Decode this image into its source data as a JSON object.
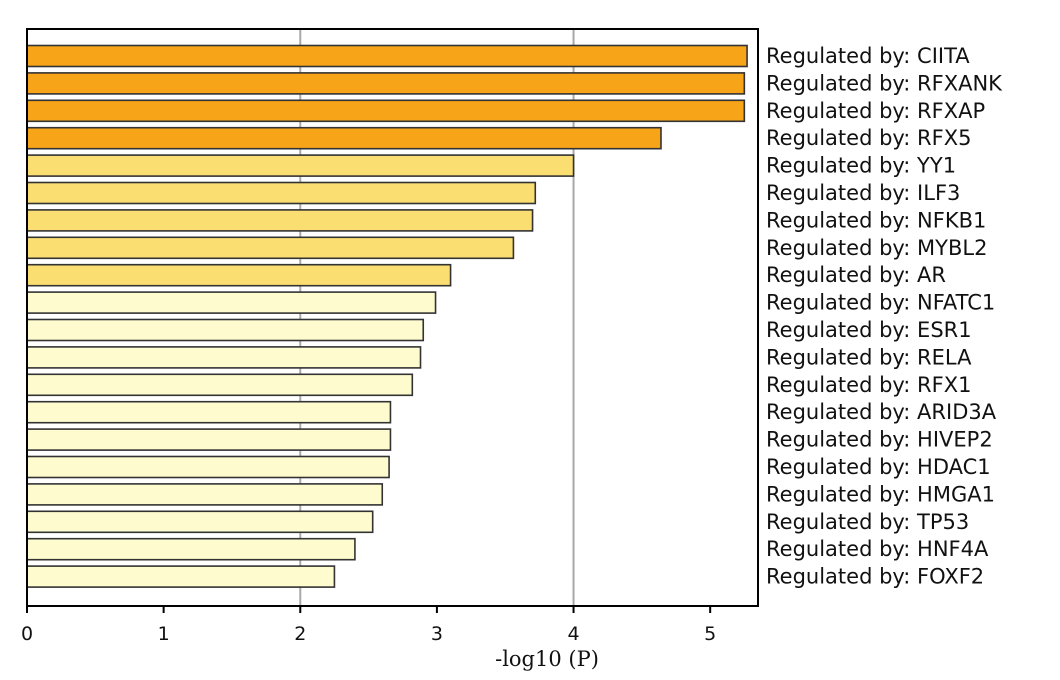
{
  "chart_data": {
    "type": "bar",
    "orientation": "horizontal",
    "title": "",
    "xlabel": "-log10 (P)",
    "ylabel": "",
    "xlim": [
      0,
      5.35
    ],
    "xticks": [
      0,
      1,
      2,
      3,
      4,
      5
    ],
    "grid": {
      "x": true,
      "gridlines_at": [
        2,
        4
      ]
    },
    "legend": "none",
    "category_labels_position": "right",
    "categories": [
      "Regulated by: CIITA",
      "Regulated by: RFXANK",
      "Regulated by: RFXAP",
      "Regulated by: RFX5",
      "Regulated by: YY1",
      "Regulated by: ILF3",
      "Regulated by: NFKB1",
      "Regulated by: MYBL2",
      "Regulated by: AR",
      "Regulated by: NFATC1",
      "Regulated by: ESR1",
      "Regulated by: RELA",
      "Regulated by: RFX1",
      "Regulated by: ARID3A",
      "Regulated by: HIVEP2",
      "Regulated by: HDAC1",
      "Regulated by: HMGA1",
      "Regulated by: TP53",
      "Regulated by: HNF4A",
      "Regulated by: FOXF2"
    ],
    "values": [
      5.27,
      5.25,
      5.25,
      4.64,
      4.0,
      3.72,
      3.7,
      3.56,
      3.1,
      2.99,
      2.9,
      2.88,
      2.82,
      2.66,
      2.66,
      2.65,
      2.6,
      2.53,
      2.4,
      2.25
    ],
    "colors": {
      "strong": "#f7a419",
      "medium": "#fbde72",
      "weak": "#fefccf",
      "bar_border": "#333333",
      "grid": "#a8a8a8"
    },
    "color_level": [
      "strong",
      "strong",
      "strong",
      "strong",
      "medium",
      "medium",
      "medium",
      "medium",
      "medium",
      "weak",
      "weak",
      "weak",
      "weak",
      "weak",
      "weak",
      "weak",
      "weak",
      "weak",
      "weak",
      "weak"
    ]
  }
}
